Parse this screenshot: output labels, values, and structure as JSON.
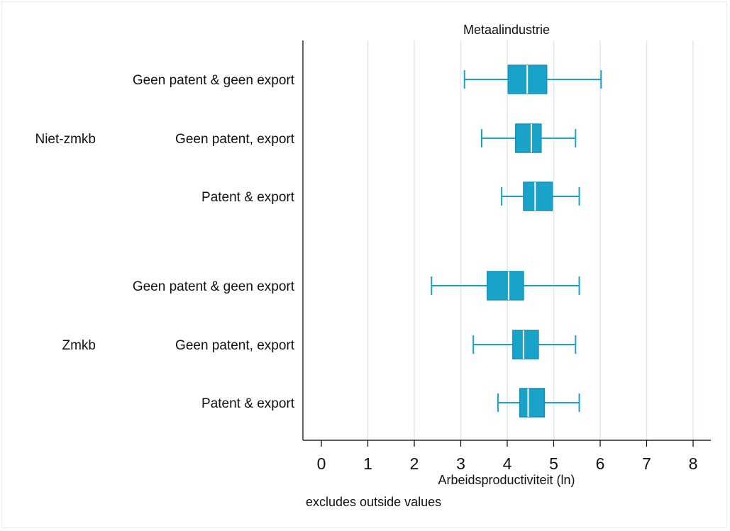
{
  "chart_data": {
    "type": "box",
    "title": "Metaalindustrie",
    "xlabel": "Arbeidsproductiviteit (ln)",
    "note": "excludes outside values",
    "xlim": [
      -0.4,
      8.4
    ],
    "xticks": [
      0,
      1,
      2,
      3,
      4,
      5,
      6,
      7,
      8
    ],
    "grid": true,
    "color": "#1aa3c8",
    "groups": [
      {
        "name": "Niet-zmkb",
        "rows": [
          {
            "label": "Geen patent & geen export",
            "min": 3.08,
            "q1": 4.02,
            "median": 4.43,
            "q3": 4.85,
            "max": 6.02
          },
          {
            "label": "Geen patent, export",
            "min": 3.45,
            "q1": 4.18,
            "median": 4.52,
            "q3": 4.73,
            "max": 5.47
          },
          {
            "label": "Patent & export",
            "min": 3.88,
            "q1": 4.35,
            "median": 4.6,
            "q3": 4.97,
            "max": 5.55
          }
        ]
      },
      {
        "name": "Zmkb",
        "rows": [
          {
            "label": "Geen patent & geen export",
            "min": 2.37,
            "q1": 3.57,
            "median": 4.03,
            "q3": 4.35,
            "max": 5.55
          },
          {
            "label": "Geen patent, export",
            "min": 3.27,
            "q1": 4.12,
            "median": 4.35,
            "q3": 4.67,
            "max": 5.47
          },
          {
            "label": "Patent & export",
            "min": 3.8,
            "q1": 4.27,
            "median": 4.45,
            "q3": 4.8,
            "max": 5.55
          }
        ]
      }
    ]
  }
}
